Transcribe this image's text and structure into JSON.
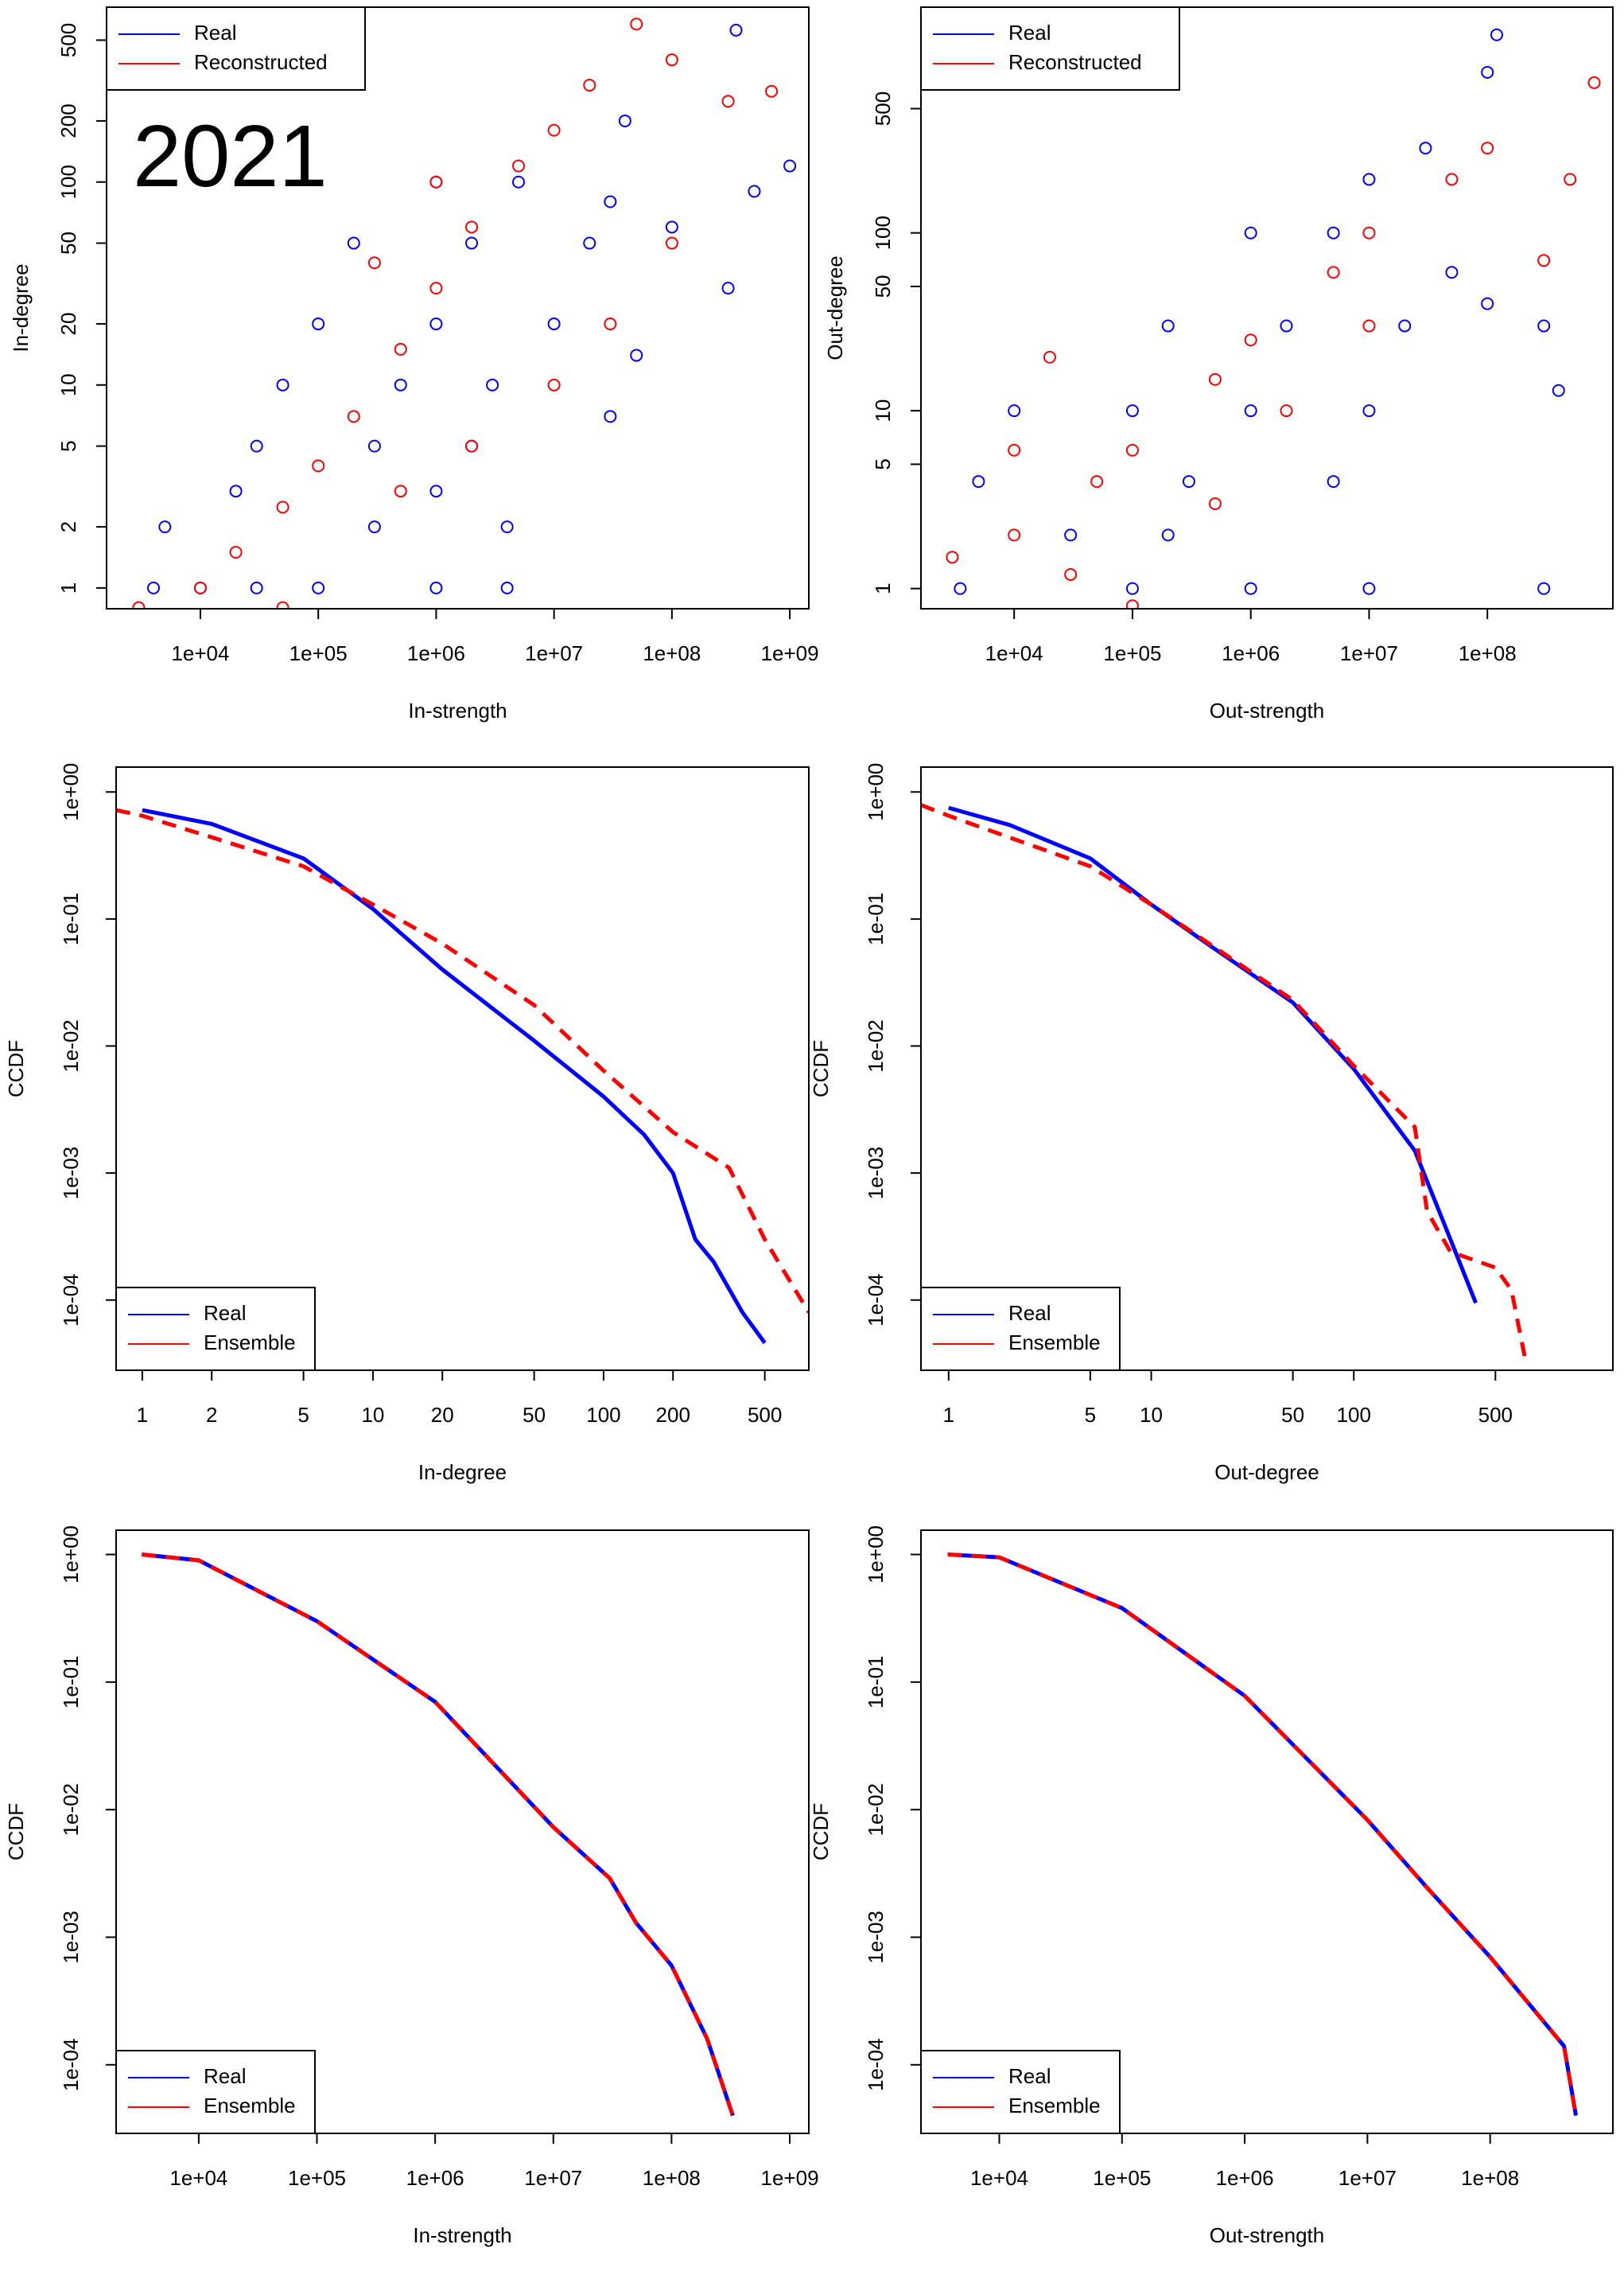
{
  "chart_data": [
    {
      "type": "scatter",
      "xlabel": "In-strength",
      "ylabel": "In-degree",
      "annotation": "2021",
      "xscale": "log",
      "yscale": "log",
      "legend": "top-left",
      "xlim": [
        1600,
        1450000000
      ],
      "ylim": [
        0.79,
        727
      ],
      "xticks": [
        {
          "value": 10000,
          "label": "1e+04"
        },
        {
          "value": 100000,
          "label": "1e+05"
        },
        {
          "value": 1000000,
          "label": "1e+06"
        },
        {
          "value": 10000000,
          "label": "1e+07"
        },
        {
          "value": 100000000,
          "label": "1e+08"
        },
        {
          "value": 1000000000,
          "label": "1e+09"
        }
      ],
      "yticks": [
        1,
        2,
        5,
        10,
        20,
        50,
        100,
        200,
        500
      ],
      "series": [
        {
          "name": "Real",
          "color": "#0000ff",
          "x": [
            4000,
            10000,
            30000,
            100000,
            1000000,
            4000000,
            5000,
            300000,
            4000000,
            20000,
            1000000,
            30000,
            300000,
            2000000,
            50000,
            500000,
            3000000,
            100000,
            1000000,
            10000000,
            200000,
            2000000,
            20000000,
            1000000,
            5000000,
            30000000,
            100000000,
            500000000,
            1000000000,
            300000000,
            50000000,
            30000000,
            350000000,
            40000000
          ],
          "values": [
            1,
            1,
            1,
            1,
            1,
            1,
            2,
            2,
            2,
            3,
            3,
            5,
            5,
            5,
            10,
            10,
            10,
            20,
            20,
            20,
            50,
            50,
            50,
            100,
            100,
            80,
            60,
            90,
            120,
            30,
            14,
            7,
            560,
            200
          ]
        },
        {
          "name": "Reconstructed",
          "color": "#ff0000",
          "x": [
            3000,
            10000,
            20000,
            50000,
            100000,
            200000,
            500000,
            1000000,
            2000000,
            5000000,
            10000000,
            20000000,
            50000000,
            100000000,
            300000000,
            700000000,
            100000000,
            30000000,
            10000000,
            2000000,
            500000,
            50000,
            1000000,
            300000
          ],
          "values": [
            0.8,
            1,
            1.5,
            2.5,
            4,
            7,
            15,
            30,
            60,
            120,
            180,
            300,
            600,
            400,
            250,
            280,
            50,
            20,
            10,
            5,
            3,
            0.8,
            100,
            40
          ]
        }
      ]
    },
    {
      "type": "scatter",
      "xlabel": "Out-strength",
      "ylabel": "Out-degree",
      "xscale": "log",
      "yscale": "log",
      "legend": "top-left",
      "xlim": [
        1630,
        1150000000
      ],
      "ylim": [
        0.77,
        1860
      ],
      "xticks": [
        {
          "value": 10000,
          "label": "1e+04"
        },
        {
          "value": 100000,
          "label": "1e+05"
        },
        {
          "value": 1000000,
          "label": "1e+06"
        },
        {
          "value": 10000000,
          "label": "1e+07"
        },
        {
          "value": 100000000,
          "label": "1e+08"
        }
      ],
      "yticks": [
        1,
        5,
        10,
        50,
        100,
        500
      ],
      "series": [
        {
          "name": "Real",
          "color": "#0000ff",
          "x": [
            3500,
            100000,
            1000000,
            10000000,
            300000000,
            5000,
            300000,
            5000000,
            10000,
            100000,
            1000000,
            10000000,
            200000,
            2000000,
            20000000,
            1000000,
            10000000,
            50000000,
            100000000,
            300000000,
            400000000,
            120000000,
            30000000,
            100000000,
            5000000,
            30000,
            200000
          ],
          "values": [
            1,
            1,
            1,
            1,
            1,
            4,
            4,
            4,
            10,
            10,
            10,
            10,
            30,
            30,
            30,
            100,
            200,
            60,
            40,
            30,
            13,
            1300,
            300,
            800,
            100,
            2,
            2
          ]
        },
        {
          "name": "Reconstructed",
          "color": "#ff0000",
          "x": [
            3000,
            10000,
            50000,
            100000,
            500000,
            1000000,
            5000000,
            10000000,
            50000000,
            100000000,
            500000000,
            800000000,
            300000000,
            10000000,
            2000000,
            500000,
            10000,
            20000,
            30000,
            100000
          ],
          "values": [
            1.5,
            2,
            4,
            6,
            15,
            25,
            60,
            100,
            200,
            300,
            200,
            700,
            70,
            30,
            10,
            3,
            6,
            20,
            1.2,
            0.8
          ]
        }
      ]
    },
    {
      "type": "line",
      "xlabel": "In-degree",
      "ylabel": "CCDF",
      "xscale": "log",
      "yscale": "log",
      "legend": "bottom-left",
      "xlim": [
        0.77,
        776
      ],
      "ylim": [
        2.8e-05,
        1.57
      ],
      "xticks": [
        1,
        2,
        5,
        10,
        20,
        50,
        100,
        200,
        500
      ],
      "yticks": [
        {
          "value": 1,
          "label": "1e+00"
        },
        {
          "value": 0.1,
          "label": "1e-01"
        },
        {
          "value": 0.01,
          "label": "1e-02"
        },
        {
          "value": 0.001,
          "label": "1e-03"
        },
        {
          "value": 0.0001,
          "label": "1e-04"
        }
      ],
      "series": [
        {
          "name": "Real",
          "color": "#0000ff",
          "linestyle": "solid",
          "x": [
            1,
            2,
            5,
            10,
            20,
            50,
            100,
            150,
            200,
            250,
            300,
            400,
            500
          ],
          "values": [
            0.72,
            0.56,
            0.3,
            0.12,
            0.04,
            0.011,
            0.004,
            0.002,
            0.001,
            0.0003,
            0.0002,
            8e-05,
            4.6e-05
          ]
        },
        {
          "name": "Ensemble",
          "color": "#ff0000",
          "linestyle": "dashed",
          "x": [
            0.77,
            1,
            2,
            5,
            10,
            20,
            50,
            100,
            200,
            350,
            500,
            776
          ],
          "values": [
            0.72,
            0.65,
            0.44,
            0.26,
            0.13,
            0.064,
            0.021,
            0.0064,
            0.0021,
            0.0011,
            0.0003,
            8e-05
          ]
        }
      ]
    },
    {
      "type": "line",
      "xlabel": "Out-degree",
      "ylabel": "CCDF",
      "xscale": "log",
      "yscale": "log",
      "legend": "bottom-left",
      "xlim": [
        0.73,
        1900
      ],
      "ylim": [
        2.8e-05,
        1.57
      ],
      "xticks": [
        1,
        5,
        10,
        50,
        100,
        500
      ],
      "yticks": [
        {
          "value": 1,
          "label": "1e+00"
        },
        {
          "value": 0.1,
          "label": "1e-01"
        },
        {
          "value": 0.01,
          "label": "1e-02"
        },
        {
          "value": 0.001,
          "label": "1e-03"
        },
        {
          "value": 0.0001,
          "label": "1e-04"
        }
      ],
      "series": [
        {
          "name": "Real",
          "color": "#0000ff",
          "linestyle": "solid",
          "x": [
            1,
            2,
            5,
            10,
            20,
            50,
            100,
            200,
            300,
            400
          ],
          "values": [
            0.75,
            0.55,
            0.3,
            0.13,
            0.06,
            0.022,
            0.0066,
            0.0015,
            0.0003,
            9.5e-05
          ]
        },
        {
          "name": "Ensemble",
          "color": "#ff0000",
          "linestyle": "dashed",
          "x": [
            0.73,
            1,
            5,
            10,
            50,
            100,
            200,
            230,
            300,
            500,
            600,
            700
          ],
          "values": [
            0.79,
            0.65,
            0.26,
            0.13,
            0.023,
            0.007,
            0.0023,
            0.0005,
            0.00024,
            0.00018,
            0.00012,
            3.5e-05
          ]
        }
      ]
    },
    {
      "type": "line",
      "xlabel": "In-strength",
      "ylabel": "CCDF",
      "xscale": "log",
      "yscale": "log",
      "legend": "bottom-left",
      "xlim": [
        2000,
        1450000000
      ],
      "ylim": [
        2.9e-05,
        1.55
      ],
      "xticks": [
        {
          "value": 10000,
          "label": "1e+04"
        },
        {
          "value": 100000,
          "label": "1e+05"
        },
        {
          "value": 1000000,
          "label": "1e+06"
        },
        {
          "value": 10000000,
          "label": "1e+07"
        },
        {
          "value": 100000000,
          "label": "1e+08"
        },
        {
          "value": 1000000000,
          "label": "1e+09"
        }
      ],
      "yticks": [
        {
          "value": 1,
          "label": "1e+00"
        },
        {
          "value": 0.1,
          "label": "1e-01"
        },
        {
          "value": 0.01,
          "label": "1e-02"
        },
        {
          "value": 0.001,
          "label": "1e-03"
        },
        {
          "value": 0.0001,
          "label": "1e-04"
        }
      ],
      "series": [
        {
          "name": "Real",
          "color": "#0000ff",
          "linestyle": "solid",
          "x": [
            3300,
            10000,
            100000,
            1000000,
            10000000,
            30000000,
            50000000,
            100000000,
            200000000,
            330000000
          ],
          "values": [
            1,
            0.9,
            0.3,
            0.07,
            0.0073,
            0.0029,
            0.0013,
            0.0006,
            0.00016,
            4e-05
          ]
        },
        {
          "name": "Ensemble",
          "color": "#ff0000",
          "linestyle": "dashed",
          "x": [
            3300,
            10000,
            100000,
            1000000,
            10000000,
            30000000,
            50000000,
            100000000,
            200000000,
            330000000
          ],
          "values": [
            1,
            0.9,
            0.3,
            0.07,
            0.0073,
            0.0029,
            0.0013,
            0.0006,
            0.00016,
            4e-05
          ]
        }
      ]
    },
    {
      "type": "line",
      "xlabel": "Out-strength",
      "ylabel": "CCDF",
      "xscale": "log",
      "yscale": "log",
      "legend": "bottom-left",
      "xlim": [
        2300,
        1000000000
      ],
      "ylim": [
        2.9e-05,
        1.55
      ],
      "xticks": [
        {
          "value": 10000,
          "label": "1e+04"
        },
        {
          "value": 100000,
          "label": "1e+05"
        },
        {
          "value": 1000000,
          "label": "1e+06"
        },
        {
          "value": 10000000,
          "label": "1e+07"
        },
        {
          "value": 100000000,
          "label": "1e+08"
        }
      ],
      "yticks": [
        {
          "value": 1,
          "label": "1e+00"
        },
        {
          "value": 0.1,
          "label": "1e-01"
        },
        {
          "value": 0.01,
          "label": "1e-02"
        },
        {
          "value": 0.001,
          "label": "1e-03"
        },
        {
          "value": 0.0001,
          "label": "1e-04"
        }
      ],
      "series": [
        {
          "name": "Real",
          "color": "#0000ff",
          "linestyle": "solid",
          "x": [
            3800,
            10000,
            100000,
            1000000,
            10000000,
            30000000,
            100000000,
            400000000,
            500000000
          ],
          "values": [
            1,
            0.95,
            0.38,
            0.078,
            0.0083,
            0.0025,
            0.0007,
            0.00014,
            4e-05
          ]
        },
        {
          "name": "Ensemble",
          "color": "#ff0000",
          "linestyle": "dashed",
          "x": [
            3800,
            10000,
            100000,
            1000000,
            10000000,
            30000000,
            100000000,
            400000000,
            500000000
          ],
          "values": [
            1,
            0.95,
            0.38,
            0.078,
            0.0083,
            0.0025,
            0.0007,
            0.00014,
            4e-05
          ]
        }
      ]
    }
  ]
}
